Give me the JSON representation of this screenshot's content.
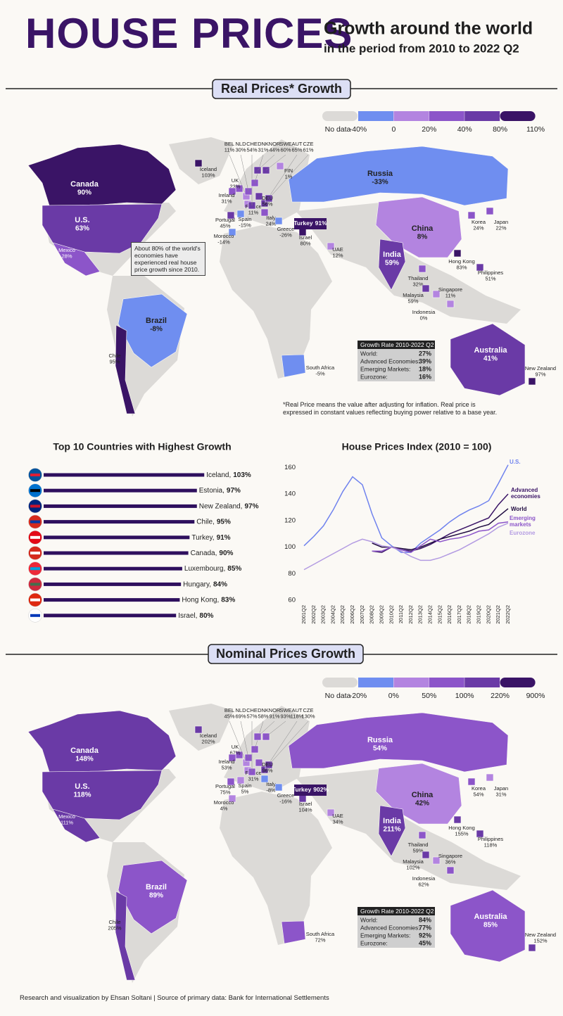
{
  "header": {
    "title": "HOUSE PRICES",
    "subtitle": "Growth around the world",
    "subtitle_2": "in the period from 2010 to 2022 Q2"
  },
  "chart_data": [
    {
      "type": "choropleth",
      "title": "Real Prices* Growth",
      "legend": {
        "no_data": "No data",
        "no_data_color": "#dcdad7",
        "colors": [
          "#6f8ef0",
          "#b384e0",
          "#8c55c9",
          "#6a3aa6",
          "#3a1466"
        ],
        "breaks": [
          {
            "value": -40,
            "label": "-40%"
          },
          0,
          {
            "value": 20,
            "label": "20%"
          },
          {
            "value": 40,
            "label": "40%"
          },
          {
            "value": 80,
            "label": "80%"
          },
          {
            "value": 110,
            "label": "110%"
          }
        ]
      },
      "countries": [
        "Canada",
        "U.S.",
        "Mexico",
        "Brazil",
        "Chile",
        "Iceland",
        "UK",
        "Ireland",
        "Portugal",
        "Spain",
        "France",
        "Morocco",
        "Italy",
        "Greece",
        "Israel",
        "Turkey",
        "Russia",
        "China",
        "Korea",
        "Japan",
        "UAE",
        "India",
        "Hong Kong",
        "Thailand",
        "Philippines",
        "Malaysia",
        "Singapore",
        "Indonesia",
        "Australia",
        "New Zealand",
        "South Africa",
        "BEL",
        "NLD",
        "CHE",
        "DNK",
        "NOR",
        "SWE",
        "AUT",
        "CZE",
        "DEU",
        "FIN"
      ],
      "values": [
        90,
        63,
        28,
        -8,
        95,
        103,
        23,
        31,
        45,
        -15,
        11,
        -14,
        24,
        -26,
        80,
        91,
        -33,
        8,
        24,
        22,
        12,
        59,
        83,
        32,
        51,
        59,
        11,
        0,
        41,
        97,
        -5,
        11,
        30,
        54,
        31,
        44,
        60,
        65,
        61,
        56,
        1
      ],
      "value_labels": [
        "90%",
        "63%",
        "28%",
        "-8%",
        "95%",
        "103%",
        "23%",
        "31%",
        "45%",
        "-15%",
        "11%",
        "-14%",
        "24%",
        "-26%",
        "80%",
        "91%",
        "-33%",
        "8%",
        "24%",
        "22%",
        "12%",
        "59%",
        "83%",
        "32%",
        "51%",
        "59%",
        "11%",
        "0%",
        "41%",
        "97%",
        "-5%",
        "11%",
        "30%",
        "54%",
        "31%",
        "44%",
        "60%",
        "65%",
        "61%",
        "56%",
        "1%"
      ],
      "summary": {
        "title": "Growth Rate 2010-2022 Q2",
        "labels": [
          "World:",
          "Advanced Economies:",
          "Emerging Markets:",
          "Eurozone:"
        ],
        "values": [
          27,
          39,
          18,
          16
        ],
        "value_labels": [
          "27%",
          "39%",
          "18%",
          "16%"
        ]
      },
      "annotation": "About 80% of the world's economies have experienced real house price growth since 2010.",
      "footnote": "*Real Price means the value after adjusting for inflation. Real price is expressed in constant values reflecting buying power relative to a base year."
    },
    {
      "type": "bar",
      "orientation": "horizontal",
      "title": "Top 10 Countries with Highest Growth",
      "categories": [
        "Iceland,",
        "Estonia,",
        "New Zealand,",
        "Chile,",
        "Turkey,",
        "Canada,",
        "Luxembourg,",
        "Hungary,",
        "Hong Kong,",
        "Israel,"
      ],
      "values": [
        103,
        97,
        97,
        95,
        91,
        90,
        85,
        84,
        83,
        80
      ],
      "value_labels": [
        "103%",
        "97%",
        "97%",
        "95%",
        "91%",
        "90%",
        "85%",
        "84%",
        "83%",
        "80%"
      ],
      "color": "#2e0f5e"
    },
    {
      "type": "line",
      "title": "House Prices Index (2010 = 100)",
      "categories": [
        "2001Q2",
        "2002Q2",
        "2003Q2",
        "2004Q2",
        "2005Q2",
        "2006Q2",
        "2007Q2",
        "2008Q2",
        "2009Q2",
        "2010Q2",
        "2011Q2",
        "2012Q2",
        "2013Q2",
        "2014Q2",
        "2015Q2",
        "2016Q2",
        "2017Q2",
        "2018Q2",
        "2019Q2",
        "2020Q2",
        "2021Q2",
        "2022Q2"
      ],
      "ylim": [
        60,
        165
      ],
      "yticks": [
        60,
        80,
        100,
        120,
        140,
        160
      ],
      "grid": false,
      "series": [
        {
          "name": "U.S.",
          "color": "#6f82ee",
          "values": [
            101,
            108,
            116,
            128,
            142,
            153,
            147,
            125,
            107,
            101,
            96,
            96,
            103,
            108,
            113,
            119,
            124,
            128,
            131,
            135,
            148,
            162
          ]
        },
        {
          "name": "Advanced economies",
          "color": "#3a1466",
          "values": [
            null,
            null,
            null,
            null,
            null,
            null,
            null,
            97,
            96,
            100,
            98,
            97,
            99,
            102,
            106,
            110,
            113,
            116,
            119,
            122,
            132,
            140
          ]
        },
        {
          "name": "World",
          "color": "#1f0a40",
          "values": [
            null,
            null,
            null,
            null,
            null,
            null,
            null,
            103,
            100,
            100,
            99,
            98,
            100,
            103,
            106,
            108,
            110,
            112,
            115,
            117,
            123,
            129
          ]
        },
        {
          "name": "Emerging markets",
          "color": "#8c55c9",
          "values": [
            null,
            null,
            null,
            null,
            null,
            null,
            null,
            97,
            97,
            100,
            98,
            96,
            101,
            106,
            104,
            106,
            107,
            109,
            112,
            113,
            118,
            119
          ]
        },
        {
          "name": "Eurozone",
          "color": "#b39be2",
          "values": [
            83,
            87,
            91,
            95,
            99,
            103,
            106,
            104,
            101,
            100,
            97,
            93,
            90,
            90,
            92,
            95,
            98,
            102,
            106,
            110,
            115,
            118
          ]
        }
      ]
    },
    {
      "type": "choropleth",
      "title": "Nominal Prices Growth",
      "legend": {
        "no_data": "No data",
        "no_data_color": "#dcdad7",
        "colors": [
          "#6f8ef0",
          "#b384e0",
          "#8c55c9",
          "#6a3aa6",
          "#3a1466"
        ],
        "breaks": [
          {
            "value": -20,
            "label": "-20%"
          },
          {
            "value": 0,
            "label": "0%"
          },
          {
            "value": 50,
            "label": "50%"
          },
          {
            "value": 100,
            "label": "100%"
          },
          {
            "value": 220,
            "label": "220%"
          },
          {
            "value": 900,
            "label": "900%"
          }
        ]
      },
      "countries": [
        "Canada",
        "U.S.",
        "Mexico",
        "Brazil",
        "Chile",
        "Iceland",
        "UK",
        "Ireland",
        "Portugal",
        "Spain",
        "France",
        "Morocco",
        "Italy",
        "Greece",
        "Israel",
        "Turkey",
        "Russia",
        "China",
        "Korea",
        "Japan",
        "UAE",
        "India",
        "Hong Kong",
        "Thailand",
        "Philippines",
        "Malaysia",
        "Singapore",
        "Indonesia",
        "Australia",
        "New Zealand",
        "South Africa",
        "BEL",
        "NLD",
        "CHE",
        "DNK",
        "NOR",
        "SWE",
        "AUT",
        "CZE",
        "DEU"
      ],
      "values": [
        148,
        118,
        111,
        89,
        205,
        202,
        67,
        53,
        75,
        5,
        31,
        4,
        -8,
        -16,
        104,
        902,
        54,
        42,
        54,
        31,
        34,
        211,
        155,
        59,
        118,
        102,
        36,
        62,
        85,
        152,
        72,
        45,
        69,
        57,
        58,
        91,
        93,
        118,
        130,
        96
      ],
      "value_labels": [
        "148%",
        "118%",
        "111%",
        "89%",
        "205%",
        "202%",
        "67%",
        "53%",
        "75%",
        "5%",
        "31%",
        "4%",
        "-8%",
        "-16%",
        "104%",
        "902%",
        "54%",
        "42%",
        "54%",
        "31%",
        "34%",
        "211%",
        "155%",
        "59%",
        "118%",
        "102%",
        "36%",
        "62%",
        "85%",
        "152%",
        "72%",
        "45%",
        "69%",
        "57%",
        "58%",
        "91%",
        "93%",
        "118%",
        "130%",
        "96%"
      ],
      "summary": {
        "title": "Growth Rate 2010-2022 Q2",
        "labels": [
          "World:",
          "Advanced Economies:",
          "Emerging Markets:",
          "Eurozone:"
        ],
        "values": [
          84,
          77,
          92,
          45
        ],
        "value_labels": [
          "84%",
          "77%",
          "92%",
          "45%"
        ]
      }
    }
  ],
  "footer": "Research and visualization by Ehsan Soltani | Source of primary data: Bank for International Settlements"
}
